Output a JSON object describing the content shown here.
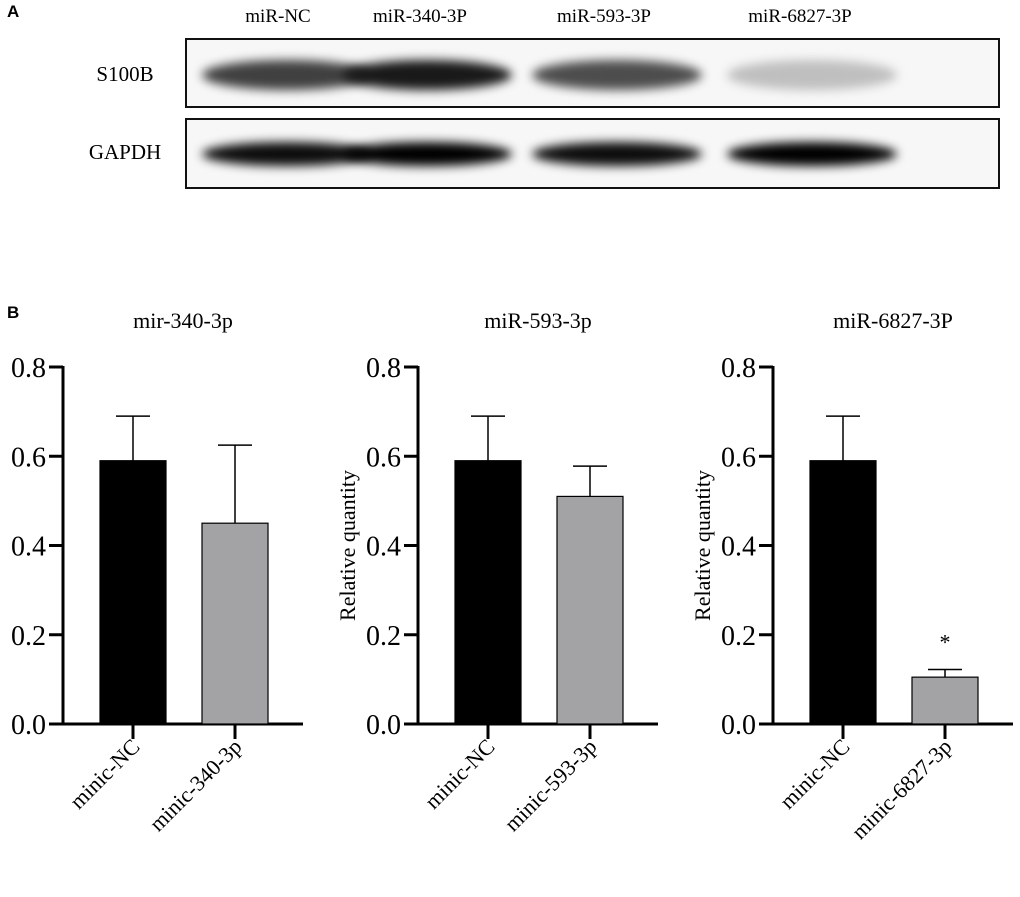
{
  "panel_a": {
    "letter": "A",
    "lanes": [
      "miR-NC",
      "miR-340-3P",
      "miR-593-3P",
      "miR-6827-3P"
    ],
    "rows": [
      {
        "label": "S100B",
        "intensity": [
          0.75,
          0.9,
          0.7,
          0.25
        ]
      },
      {
        "label": "GAPDH",
        "intensity": [
          0.95,
          1.0,
          0.95,
          1.0
        ]
      }
    ]
  },
  "panel_b": {
    "letter": "B"
  },
  "chart_data": [
    {
      "type": "bar",
      "title": "mir-340-3p",
      "ylabel": "",
      "categories": [
        "minic-NC",
        "minic-340-3p"
      ],
      "values": [
        0.59,
        0.45
      ],
      "error_upper": [
        0.69,
        0.625
      ],
      "colors": [
        "#000000",
        "#a3a3a6"
      ],
      "annotations": [
        "",
        ""
      ],
      "ylim": [
        0,
        0.8
      ],
      "yticks": [
        "0.0",
        "0.2",
        "0.4",
        "0.6",
        "0.8"
      ]
    },
    {
      "type": "bar",
      "title": "miR-593-3p",
      "ylabel": "Relative quantity",
      "categories": [
        "minic-NC",
        "minic-593-3p"
      ],
      "values": [
        0.59,
        0.51
      ],
      "error_upper": [
        0.69,
        0.578
      ],
      "colors": [
        "#000000",
        "#a3a3a6"
      ],
      "annotations": [
        "",
        ""
      ],
      "ylim": [
        0,
        0.8
      ],
      "yticks": [
        "0.0",
        "0.2",
        "0.4",
        "0.6",
        "0.8"
      ]
    },
    {
      "type": "bar",
      "title": "miR-6827-3P",
      "ylabel": "Relative quantity",
      "categories": [
        "minic-NC",
        "minic-6827-3p"
      ],
      "values": [
        0.59,
        0.105
      ],
      "error_upper": [
        0.69,
        0.122
      ],
      "colors": [
        "#000000",
        "#a3a3a6"
      ],
      "annotations": [
        "",
        "*"
      ],
      "ylim": [
        0,
        0.8
      ],
      "yticks": [
        "0.0",
        "0.2",
        "0.4",
        "0.6",
        "0.8"
      ]
    }
  ]
}
